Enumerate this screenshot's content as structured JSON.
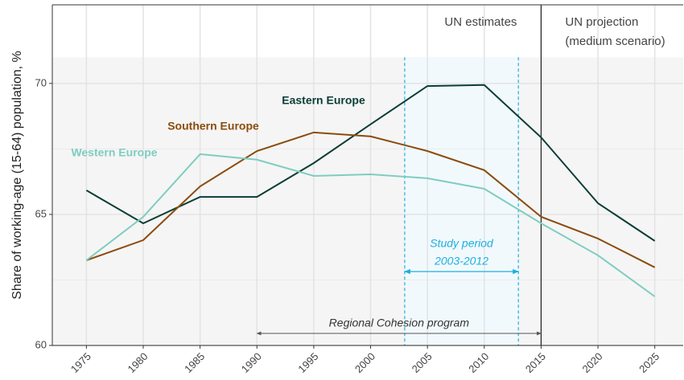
{
  "chart_data": {
    "type": "line",
    "y_label": "Share of working-age (15-64) population, %",
    "x": [
      1975,
      1980,
      1985,
      1990,
      1995,
      2000,
      2005,
      2010,
      2015,
      2020,
      2025
    ],
    "series": [
      {
        "name": "Eastern Europe",
        "color": "#0b3d36",
        "values": [
          65.92,
          64.66,
          65.67,
          65.67,
          66.96,
          68.44,
          69.9,
          69.94,
          67.94,
          65.43,
          63.99
        ]
      },
      {
        "name": "Southern Europe",
        "color": "#8b4c0c",
        "values": [
          63.25,
          64.02,
          66.07,
          67.42,
          68.13,
          67.98,
          67.42,
          66.69,
          64.91,
          64.08,
          62.98
        ]
      },
      {
        "name": "Western Europe",
        "color": "#7fcdc0",
        "values": [
          63.25,
          64.91,
          67.3,
          67.09,
          66.47,
          66.53,
          66.38,
          65.98,
          64.66,
          63.44,
          61.87
        ]
      }
    ],
    "xlim": [
      1972,
      2027.5
    ],
    "ylim": [
      60,
      73
    ],
    "xticks": [
      1975,
      1980,
      1985,
      1990,
      1995,
      2000,
      2005,
      2010,
      2015,
      2020,
      2025
    ],
    "yticks": [
      60,
      65,
      70
    ],
    "yticks_minor": [
      62.5,
      67.5
    ],
    "grid": true,
    "estimates_label": "UN estimates",
    "projection_label": [
      "UN projection",
      "(medium scenario)"
    ],
    "projection_start": 2015,
    "shaded_below": 71,
    "study_period": {
      "label": [
        "Study period",
        "2003-2012"
      ],
      "range": [
        2003,
        2013
      ],
      "color": "#1ab0e0"
    },
    "cohesion": {
      "label": "Regional Cohesion program",
      "range": [
        1990,
        2015
      ]
    }
  }
}
